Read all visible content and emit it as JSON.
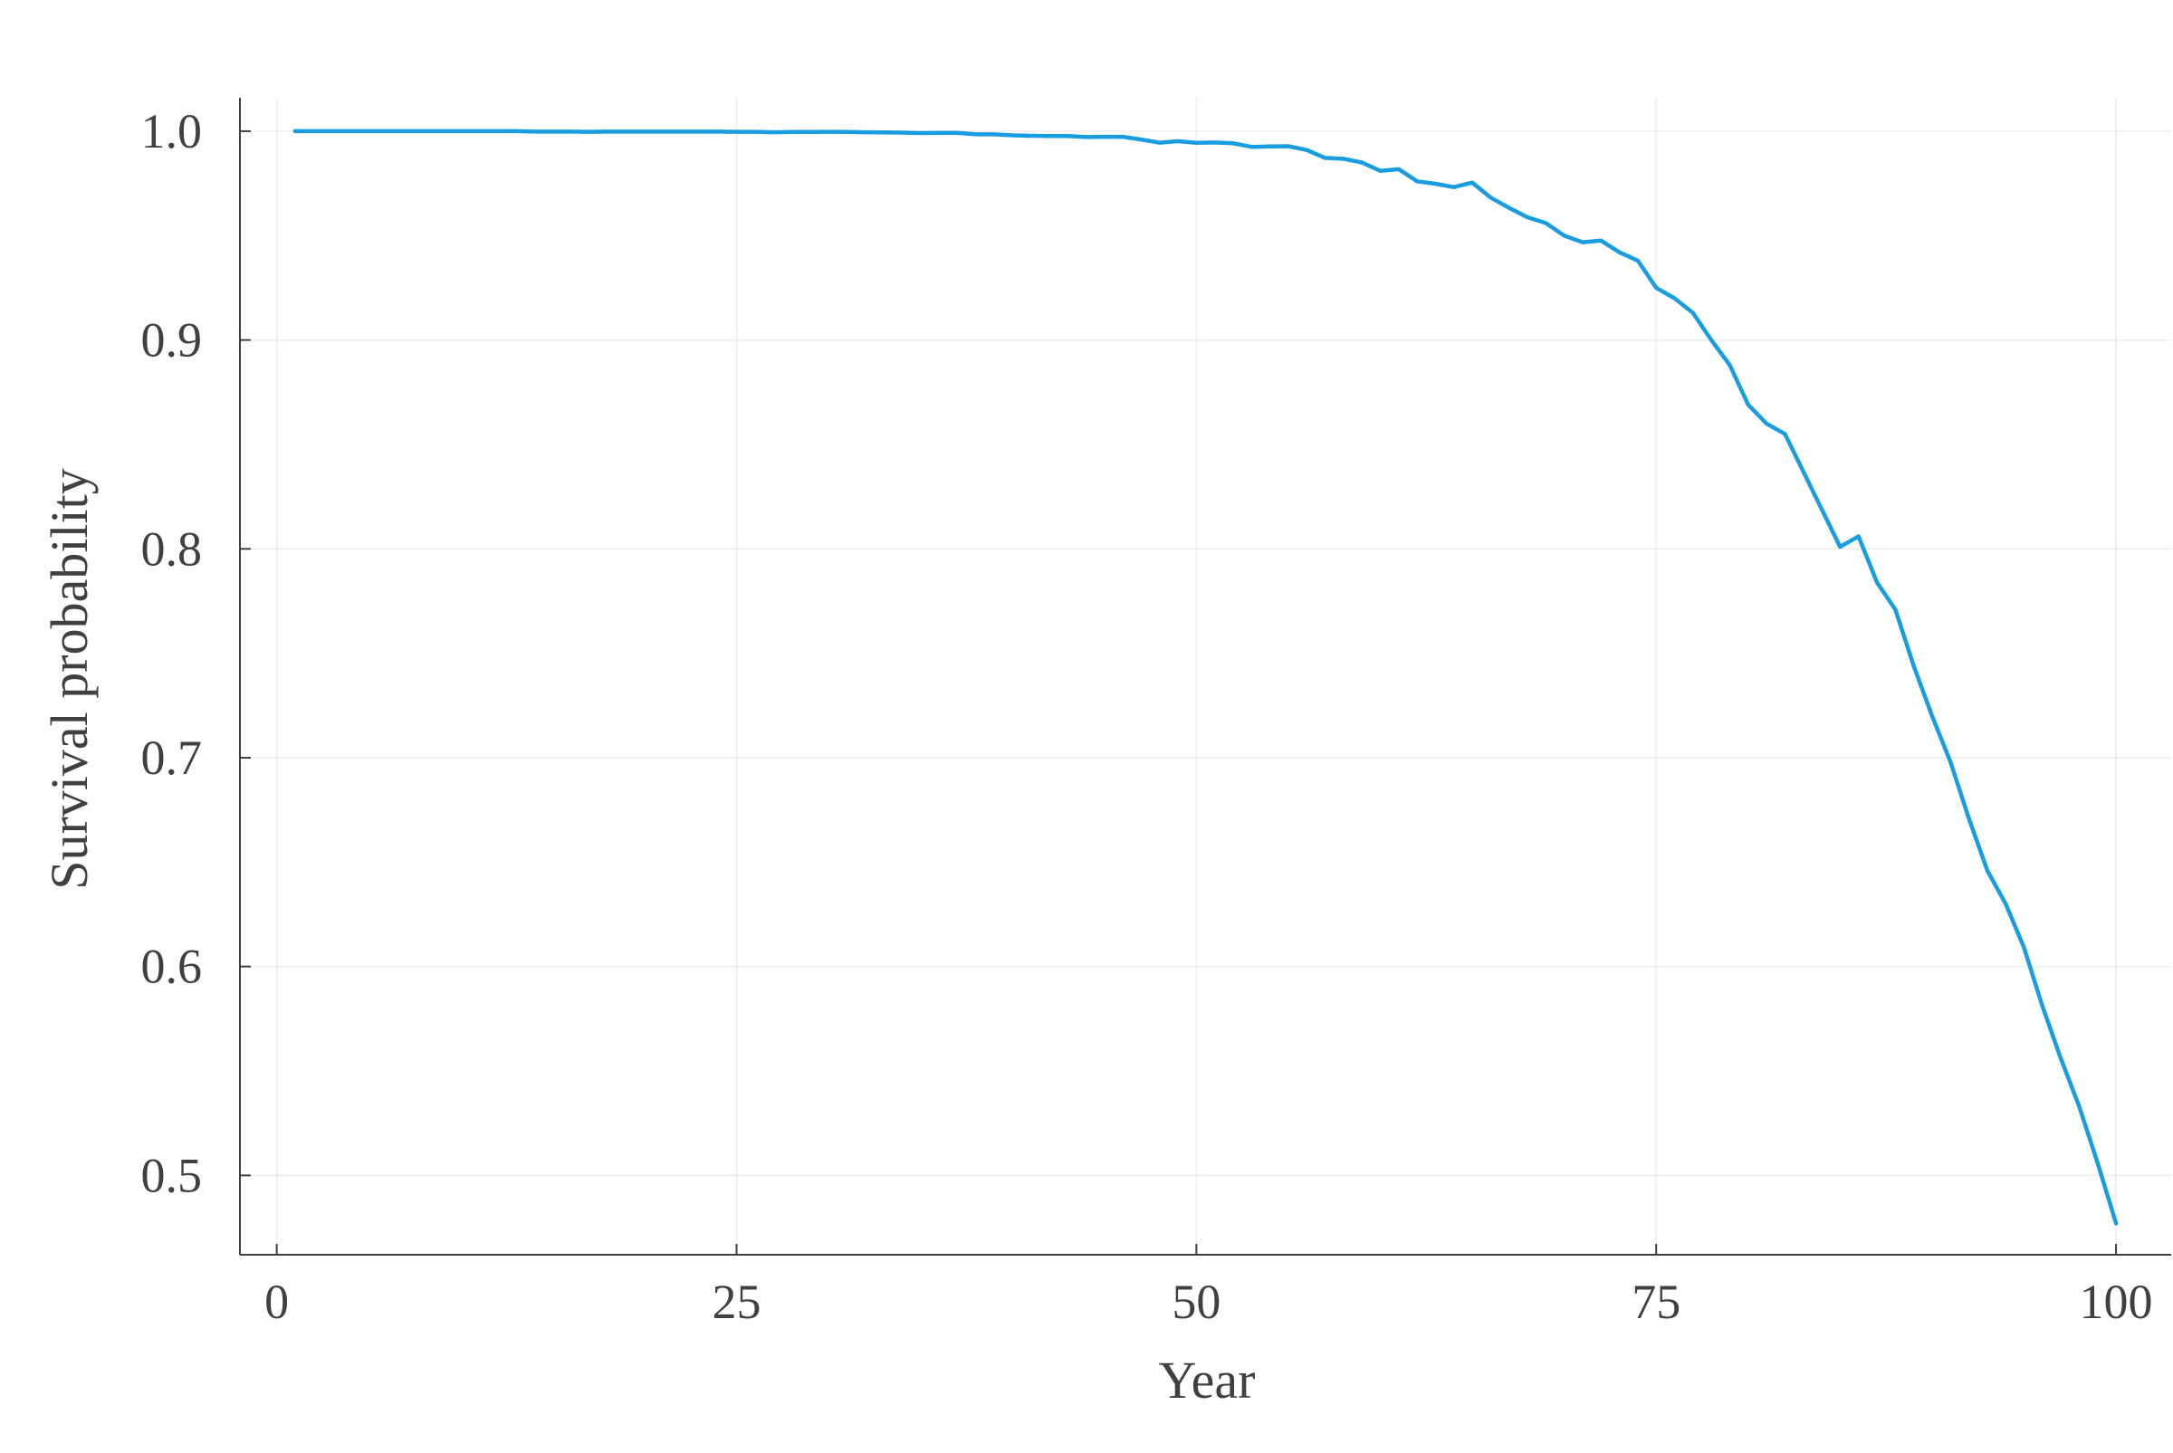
{
  "chart_data": {
    "type": "line",
    "title": "",
    "xlabel": "Year",
    "ylabel": "Survival probability",
    "xlim": [
      -2,
      103
    ],
    "ylim": [
      0.462,
      1.016
    ],
    "xticks": [
      0,
      25,
      50,
      75,
      100
    ],
    "xtick_labels": [
      "0",
      "25",
      "50",
      "75",
      "100"
    ],
    "yticks": [
      0.5,
      0.6,
      0.7,
      0.8,
      0.9,
      1.0
    ],
    "ytick_labels": [
      "0.5",
      "0.6",
      "0.7",
      "0.8",
      "0.9",
      "1.0"
    ],
    "grid": true,
    "legend": "none",
    "series": [
      {
        "name": "survival",
        "color": "#189de0",
        "x": [
          1,
          2,
          3,
          4,
          5,
          6,
          7,
          8,
          9,
          10,
          11,
          12,
          13,
          14,
          15,
          16,
          17,
          18,
          19,
          20,
          21,
          22,
          23,
          24,
          25,
          26,
          27,
          28,
          29,
          30,
          31,
          32,
          33,
          34,
          35,
          36,
          37,
          38,
          39,
          40,
          41,
          42,
          43,
          44,
          45,
          46,
          47,
          48,
          49,
          50,
          51,
          52,
          53,
          54,
          55,
          56,
          57,
          58,
          59,
          60,
          61,
          62,
          63,
          64,
          65,
          66,
          67,
          68,
          69,
          70,
          71,
          72,
          73,
          74,
          75,
          76,
          77,
          78,
          79,
          80,
          81,
          82,
          83,
          84,
          85,
          86,
          87,
          88,
          89,
          90,
          91,
          92,
          93,
          94,
          95,
          96,
          97,
          98,
          99,
          100
        ],
        "values": [
          1.0,
          1.0,
          1.0,
          1.0,
          1.0,
          1.0,
          1.0,
          1.0,
          1.0,
          1.0,
          1.0,
          1.0,
          1.0,
          0.9998,
          0.9998,
          0.9998,
          0.9997,
          0.9998,
          0.9998,
          0.9998,
          0.9998,
          0.9998,
          0.9998,
          0.9998,
          0.9997,
          0.9997,
          0.9995,
          0.9996,
          0.9996,
          0.9997,
          0.9996,
          0.9995,
          0.9994,
          0.9993,
          0.9991,
          0.9992,
          0.9992,
          0.9985,
          0.9985,
          0.998,
          0.9978,
          0.9977,
          0.9977,
          0.9972,
          0.9973,
          0.9973,
          0.996,
          0.9945,
          0.9952,
          0.9944,
          0.9946,
          0.9942,
          0.9925,
          0.9927,
          0.9928,
          0.991,
          0.9872,
          0.9868,
          0.985,
          0.981,
          0.9818,
          0.976,
          0.9748,
          0.9732,
          0.9754,
          0.9682,
          0.9633,
          0.9588,
          0.956,
          0.95,
          0.9468,
          0.9476,
          0.942,
          0.938,
          0.925,
          0.92,
          0.913,
          0.9,
          0.888,
          0.869,
          0.86,
          0.855,
          0.837,
          0.819,
          0.801,
          0.806,
          0.784,
          0.771,
          0.744,
          0.72,
          0.698,
          0.671,
          0.646,
          0.63,
          0.609,
          0.581,
          0.556,
          0.533,
          0.506,
          0.477
        ]
      }
    ]
  }
}
